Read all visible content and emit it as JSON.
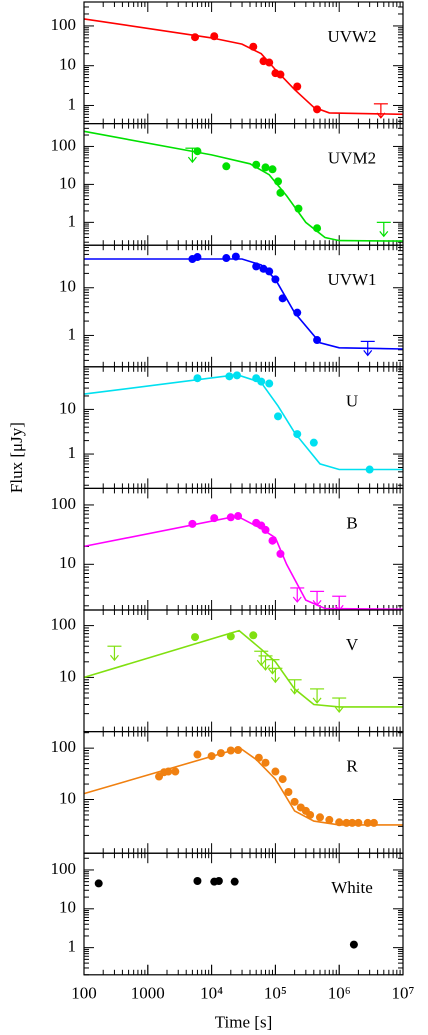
{
  "chart_data": [
    {
      "type": "line",
      "label": "UVW2",
      "color": "#ff0000",
      "log_x": true,
      "log_y": true,
      "xlim": [
        100,
        10000000
      ],
      "ylim": [
        0.35,
        400
      ],
      "yticks": [
        1,
        10,
        100
      ],
      "model": {
        "x": [
          100,
          10000,
          30000,
          60000,
          100000,
          200000,
          400000,
          700000,
          10000000
        ],
        "y": [
          150,
          50,
          35,
          20,
          8,
          2.5,
          0.9,
          0.65,
          0.6
        ]
      },
      "points": {
        "x": [
          5500,
          11000,
          45000,
          65000,
          80000,
          100000,
          120000,
          220000,
          450000
        ],
        "y": [
          52,
          55,
          30,
          13,
          12,
          6.5,
          6,
          3,
          0.8
        ]
      },
      "upper_limits": {
        "x": [
          4500000
        ],
        "y": [
          1.1
        ]
      }
    },
    {
      "type": "line",
      "label": "UVM2",
      "color": "#00e000",
      "log_x": true,
      "log_y": true,
      "xlim": [
        100,
        10000000
      ],
      "ylim": [
        0.25,
        400
      ],
      "yticks": [
        1,
        10,
        100
      ],
      "model": {
        "x": [
          100,
          10000,
          40000,
          80000,
          150000,
          300000,
          600000,
          1000000,
          10000000
        ],
        "y": [
          250,
          60,
          35,
          18,
          5,
          1,
          0.4,
          0.33,
          0.32
        ]
      },
      "points": {
        "x": [
          6000,
          17000,
          50000,
          70000,
          90000,
          110000,
          120000,
          230000,
          450000
        ],
        "y": [
          75,
          30,
          33,
          28,
          25,
          12,
          6,
          2.3,
          0.7
        ]
      },
      "upper_limits": {
        "x": [
          5000,
          5000000
        ],
        "y": [
          90,
          1.0
        ]
      }
    },
    {
      "type": "line",
      "label": "UVW1",
      "color": "#0000ff",
      "log_x": true,
      "log_y": true,
      "xlim": [
        100,
        10000000
      ],
      "ylim": [
        0.22,
        78
      ],
      "yticks": [
        1,
        10
      ],
      "model": {
        "x": [
          100,
          30000,
          60000,
          100000,
          200000,
          500000,
          1000000,
          10000000
        ],
        "y": [
          40,
          40,
          30,
          15,
          3,
          0.7,
          0.55,
          0.52
        ]
      },
      "points": {
        "x": [
          5000,
          6000,
          17000,
          24000,
          50000,
          65000,
          80000,
          100000,
          130000,
          220000,
          450000
        ],
        "y": [
          40,
          44,
          42,
          45,
          28,
          25,
          22,
          15,
          6,
          3,
          0.8
        ]
      },
      "upper_limits": {
        "x": [
          2800000
        ],
        "y": [
          0.75
        ]
      }
    },
    {
      "type": "line",
      "label": "U",
      "color": "#00e0f0",
      "log_x": true,
      "log_y": true,
      "ylabel": "Flux [μJy]",
      "xlim": [
        100,
        10000000
      ],
      "ylim": [
        0.17,
        90
      ],
      "yticks": [
        1,
        10
      ],
      "model": {
        "x": [
          100,
          25000,
          60000,
          110000,
          200000,
          500000,
          1000000,
          10000000
        ],
        "y": [
          22,
          60,
          40,
          12,
          3,
          0.6,
          0.45,
          0.45
        ]
      },
      "points": {
        "x": [
          6000,
          19000,
          25000,
          50000,
          60000,
          80000,
          110000,
          220000,
          400000,
          3000000
        ],
        "y": [
          50,
          55,
          58,
          50,
          42,
          38,
          7,
          2.8,
          1.8,
          0.45
        ]
      },
      "upper_limits": {
        "x": [],
        "y": []
      }
    },
    {
      "type": "line",
      "label": "B",
      "color": "#ff00ff",
      "log_x": true,
      "log_y": true,
      "xlim": [
        100,
        10000000
      ],
      "ylim": [
        1.7,
        190
      ],
      "yticks": [
        10,
        100
      ],
      "model": {
        "x": [
          100,
          25000,
          60000,
          100000,
          150000,
          300000,
          600000,
          10000000
        ],
        "y": [
          20,
          65,
          40,
          28,
          10,
          2.5,
          1.8,
          1.75
        ]
      },
      "points": {
        "x": [
          5000,
          11000,
          20000,
          26000,
          50000,
          60000,
          70000,
          90000,
          120000
        ],
        "y": [
          48,
          60,
          62,
          65,
          50,
          45,
          38,
          25,
          15
        ]
      },
      "upper_limits": {
        "x": [
          220000,
          450000,
          1000000
        ],
        "y": [
          4,
          3.5,
          2.9
        ]
      }
    },
    {
      "type": "line",
      "label": "V",
      "color": "#80e010",
      "log_x": true,
      "log_y": true,
      "xlim": [
        100,
        10000000
      ],
      "ylim": [
        0.9,
        200
      ],
      "yticks": [
        10,
        100
      ],
      "model": {
        "x": [
          100,
          27000,
          60000,
          100000,
          200000,
          400000,
          1000000,
          10000000
        ],
        "y": [
          10,
          80,
          35,
          20,
          6,
          3,
          2.7,
          2.7
        ]
      },
      "points": {
        "x": [
          5500,
          20000,
          45000
        ],
        "y": [
          60,
          62,
          65
        ]
      },
      "upper_limits": {
        "x": [
          300,
          60000,
          70000,
          90000,
          100000,
          200000,
          450000,
          1000000
        ],
        "y": [
          40,
          32,
          26,
          22,
          15,
          9,
          6,
          4
        ]
      }
    },
    {
      "type": "line",
      "label": "R",
      "color": "#f08010",
      "log_x": true,
      "log_y": true,
      "xlim": [
        100,
        10000000
      ],
      "ylim": [
        0.9,
        210
      ],
      "yticks": [
        10,
        100
      ],
      "model": {
        "x": [
          100,
          28000,
          50000,
          100000,
          200000,
          400000,
          1000000,
          10000000
        ],
        "y": [
          13,
          100,
          60,
          25,
          6,
          3.8,
          3.2,
          3.2
        ]
      },
      "points": {
        "x": [
          1500,
          1800,
          2100,
          2700,
          6000,
          10000,
          14000,
          20000,
          26000,
          55000,
          70000,
          100000,
          130000,
          160000,
          200000,
          250000,
          300000,
          350000,
          500000,
          700000,
          1000000,
          1300000,
          1600000,
          2000000,
          2800000,
          3500000
        ],
        "y": [
          28,
          34,
          35,
          35,
          75,
          70,
          80,
          90,
          92,
          65,
          52,
          35,
          25,
          14,
          9,
          7,
          6,
          5,
          4.5,
          4,
          3.6,
          3.5,
          3.5,
          3.5,
          3.5,
          3.5
        ]
      },
      "upper_limits": {
        "x": [],
        "y": []
      }
    },
    {
      "type": "line",
      "label": "White",
      "color": "#000000",
      "log_x": true,
      "log_y": true,
      "xlim": [
        100,
        10000000
      ],
      "ylim": [
        0.2,
        270
      ],
      "yticks": [
        1,
        10,
        100
      ],
      "xlabel": "Time [s]",
      "xticks": [
        100,
        1000,
        {
          "value": 10000,
          "label": "10⁴"
        },
        {
          "value": 100000,
          "label": "10⁵"
        },
        {
          "value": 1000000,
          "label": "10⁶"
        },
        {
          "value": 10000000,
          "label": "10⁷"
        }
      ],
      "points": {
        "x": [
          170,
          6000,
          11000,
          13000,
          23000,
          1700000
        ],
        "y": [
          45,
          52,
          50,
          52,
          50,
          1.2
        ]
      },
      "upper_limits": {
        "x": [],
        "y": []
      }
    }
  ]
}
